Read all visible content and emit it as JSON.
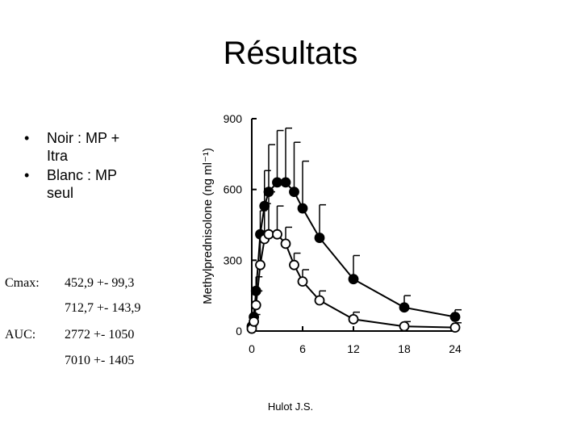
{
  "slide": {
    "title": "Résultats",
    "bullets": [
      {
        "marker": "•",
        "text": "Noir : MP + Itra"
      },
      {
        "marker": "•",
        "text": "Blanc : MP seul"
      }
    ],
    "cmax_label": "Cmax:",
    "cmax_value_1": "452,9 +- 99,3",
    "cmax_value_2": "712,7 +- 143,9",
    "auc_label": "AUC:",
    "auc_value_1": "2772 +- 1050",
    "auc_value_2": "7010 +- 1405",
    "footer": "Hulot J.S."
  },
  "chart_data": {
    "type": "line",
    "title": "",
    "xlabel": "",
    "ylabel": "Methylprednisolone (ng ml⁻¹)",
    "xlim": [
      0,
      24
    ],
    "ylim": [
      0,
      900
    ],
    "x_ticks": [
      0,
      6,
      12,
      18,
      24
    ],
    "y_ticks": [
      0,
      300,
      600,
      900
    ],
    "x_tick_labels": [
      "0",
      "6",
      "12",
      "18",
      "24"
    ],
    "y_tick_labels": [
      "0",
      "300",
      "600",
      "900"
    ],
    "grid": false,
    "series": [
      {
        "marker": "filled-circle",
        "color": "#000000",
        "x": [
          0,
          0.25,
          0.5,
          1,
          1.5,
          2,
          3,
          4,
          5,
          6,
          8,
          12,
          18,
          24
        ],
        "y": [
          20,
          60,
          170,
          410,
          530,
          590,
          630,
          630,
          590,
          520,
          395,
          220,
          100,
          60
        ],
        "error_plus": [
          30,
          40,
          60,
          100,
          150,
          200,
          220,
          230,
          210,
          200,
          140,
          100,
          50,
          30
        ]
      },
      {
        "marker": "open-circle",
        "color": "#000000",
        "x": [
          0,
          0.25,
          0.5,
          1,
          1.5,
          2,
          3,
          4,
          5,
          6,
          8,
          12,
          18,
          24
        ],
        "y": [
          10,
          40,
          110,
          280,
          390,
          410,
          410,
          370,
          280,
          210,
          130,
          50,
          20,
          15
        ],
        "error_plus": [
          20,
          30,
          60,
          100,
          150,
          180,
          120,
          70,
          50,
          50,
          40,
          30,
          20,
          20
        ]
      }
    ]
  }
}
